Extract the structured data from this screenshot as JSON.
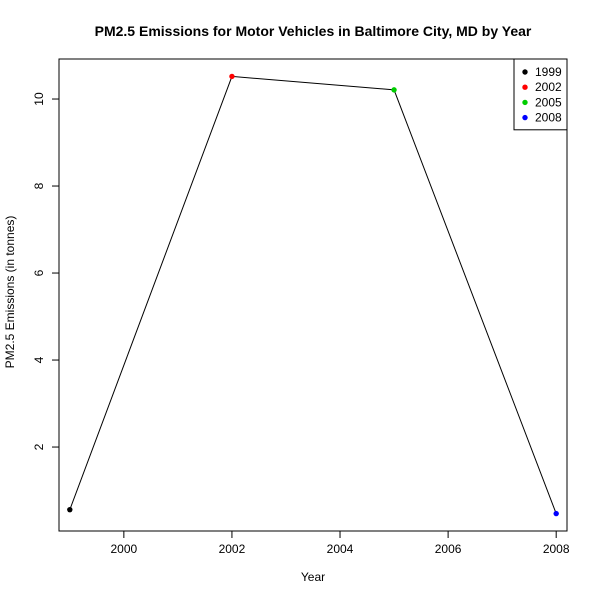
{
  "chart_data": {
    "type": "line",
    "title": "PM2.5 Emissions for Motor Vehicles in Baltimore City, MD by Year",
    "xlabel": "Year",
    "ylabel": "PM2.5 Emissions (in tonnes)",
    "x": [
      1999,
      2002,
      2005,
      2008
    ],
    "series": [
      {
        "values": [
          0.56,
          10.52,
          10.21,
          0.47
        ]
      }
    ],
    "point_colors": [
      "#000000",
      "#ff0000",
      "#00cd00",
      "#0000ff"
    ],
    "line_color": "#000000",
    "xlim": [
      1998.8,
      2008.2
    ],
    "ylim": [
      0.07,
      10.92
    ],
    "xticks": [
      "2000",
      "2002",
      "2004",
      "2006",
      "2008"
    ],
    "yticks": [
      "2",
      "4",
      "6",
      "8",
      "10"
    ],
    "grid": false,
    "legend": {
      "position": "top-right",
      "entries": [
        "1999",
        "2002",
        "2005",
        "2008"
      ]
    }
  }
}
